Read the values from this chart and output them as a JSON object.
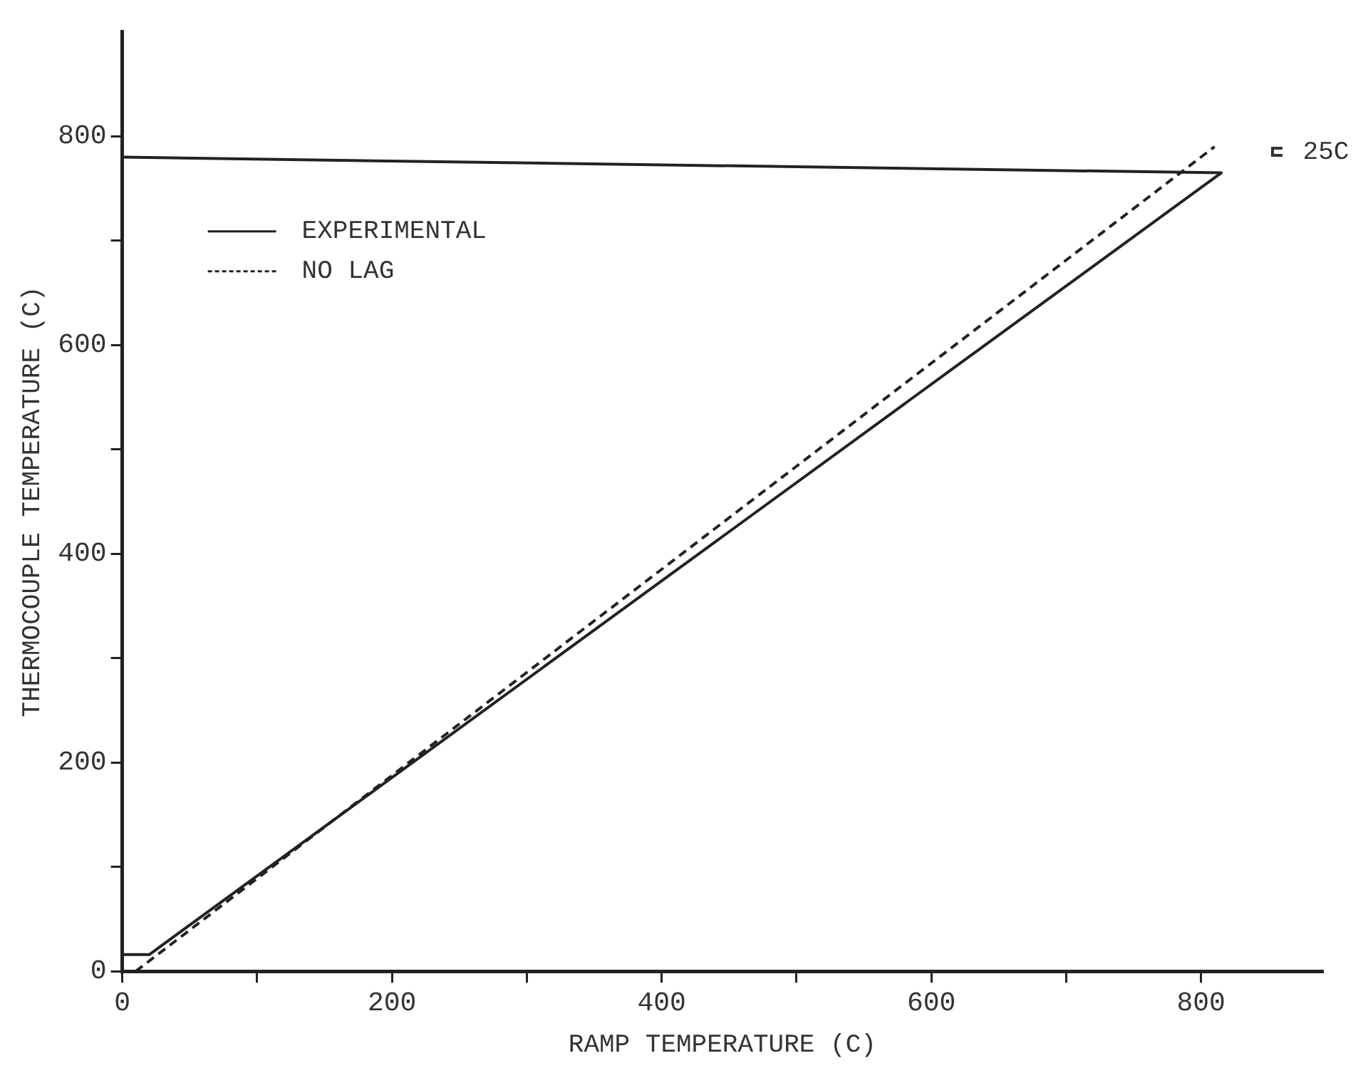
{
  "chart_data": {
    "type": "line",
    "xlabel": "RAMP TEMPERATURE (C)",
    "ylabel": "THERMOCOUPLE TEMPERATURE (C)",
    "xlim": [
      0,
      890
    ],
    "ylim": [
      0,
      900
    ],
    "xticks": [
      0,
      {
        "value": 100,
        "label": null
      },
      200,
      {
        "value": 300,
        "label": null
      },
      400,
      {
        "value": 500,
        "label": null
      },
      600,
      {
        "value": 700,
        "label": null
      },
      800
    ],
    "yticks": [
      0,
      {
        "value": 100,
        "label": null
      },
      200,
      {
        "value": 300,
        "label": null
      },
      400,
      {
        "value": 500,
        "label": null
      },
      600,
      {
        "value": 700,
        "label": null
      },
      800
    ],
    "grid": false,
    "legend": "top left",
    "marker": "none",
    "series": [
      {
        "name": "EXPERIMENTAL",
        "color": "#222222",
        "line_style": "solid",
        "x": [
          0,
          20,
          815,
          0
        ],
        "values": [
          16,
          16,
          765,
          780
        ]
      },
      {
        "name": "NO LAG",
        "color": "#222222",
        "line_style": "dashed",
        "x": [
          10,
          810
        ],
        "values": [
          0,
          790
        ]
      }
    ],
    "annotations": [
      "25C"
    ]
  }
}
